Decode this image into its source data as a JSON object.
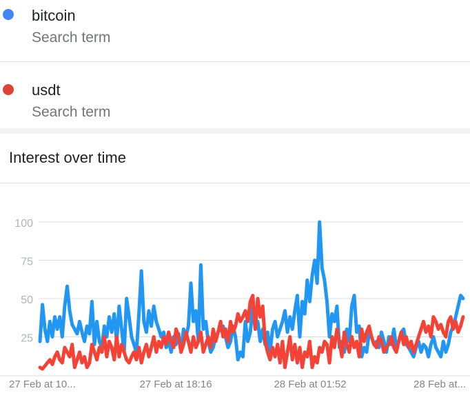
{
  "terms": [
    {
      "name": "bitcoin",
      "subtitle": "Search term",
      "color": "#4285f4"
    },
    {
      "name": "usdt",
      "subtitle": "Search term",
      "color": "#db4437"
    }
  ],
  "section": {
    "title": "Interest over time"
  },
  "chart_data": {
    "type": "line",
    "title": "Interest over time",
    "ylim": [
      0,
      100
    ],
    "yticks": [
      25,
      50,
      75,
      100
    ],
    "xtick_labels": [
      "27 Feb at 10...",
      "27 Feb at 18:16",
      "28 Feb at 01:52",
      "28 Feb at..."
    ],
    "grid": true,
    "series": [
      {
        "name": "bitcoin",
        "color": "#2196f3",
        "values": [
          22,
          46,
          30,
          22,
          35,
          25,
          38,
          30,
          38,
          25,
          45,
          58,
          42,
          33,
          30,
          27,
          35,
          28,
          22,
          32,
          27,
          48,
          20,
          35,
          22,
          18,
          32,
          25,
          38,
          28,
          40,
          22,
          45,
          30,
          15,
          50,
          38,
          25,
          20,
          15,
          40,
          68,
          35,
          28,
          42,
          32,
          45,
          35,
          30,
          25,
          28,
          18,
          22,
          15,
          25,
          20,
          27,
          15,
          30,
          25,
          32,
          60,
          35,
          42,
          22,
          72,
          30,
          35,
          22,
          15,
          18,
          25,
          28,
          30,
          32,
          25,
          18,
          22,
          32,
          25,
          10,
          15,
          12,
          35,
          22,
          28,
          45,
          30,
          35,
          22,
          30,
          20,
          28,
          15,
          30,
          35,
          25,
          30,
          35,
          42,
          28,
          38,
          30,
          42,
          52,
          25,
          48,
          40,
          62,
          48,
          65,
          75,
          60,
          100,
          70,
          62,
          48,
          25,
          40,
          35,
          45,
          18,
          22,
          15,
          30,
          22,
          45,
          52,
          28,
          32,
          12,
          18,
          15,
          28,
          25,
          20,
          22,
          18,
          28,
          22,
          15,
          25,
          20,
          30,
          18,
          22,
          28,
          30,
          20,
          18,
          15,
          12,
          18,
          22,
          15,
          20,
          18,
          12,
          20,
          25,
          18,
          15,
          12,
          22,
          15,
          20,
          28,
          32,
          38,
          45,
          52,
          50
        ]
      },
      {
        "name": "usdt",
        "color": "#f44336",
        "values": [
          5,
          4,
          6,
          8,
          10,
          7,
          12,
          15,
          10,
          8,
          18,
          15,
          12,
          20,
          5,
          10,
          15,
          8,
          12,
          5,
          8,
          20,
          15,
          10,
          18,
          15,
          25,
          12,
          22,
          18,
          10,
          25,
          12,
          20,
          15,
          10,
          8,
          12,
          15,
          10,
          18,
          8,
          15,
          20,
          12,
          18,
          25,
          15,
          22,
          18,
          25,
          20,
          28,
          22,
          18,
          30,
          25,
          15,
          20,
          28,
          22,
          15,
          25,
          18,
          22,
          28,
          15,
          20,
          25,
          18,
          30,
          22,
          28,
          35,
          25,
          30,
          22,
          35,
          28,
          32,
          40,
          35,
          38,
          42,
          35,
          48,
          52,
          30,
          50,
          38,
          45,
          22,
          15,
          10,
          18,
          12,
          20,
          8,
          22,
          5,
          15,
          25,
          10,
          20,
          8,
          18,
          5,
          15,
          12,
          22,
          5,
          12,
          8,
          18,
          15,
          22,
          20,
          8,
          25,
          18,
          30,
          22,
          12,
          28,
          20,
          15,
          25,
          18,
          22,
          12,
          30,
          22,
          28,
          32,
          25,
          20,
          18,
          25,
          22,
          15,
          18,
          20,
          25,
          18,
          15,
          22,
          28,
          20,
          25,
          18,
          22,
          15,
          20,
          25,
          30,
          35,
          28,
          32,
          25,
          38,
          35,
          30,
          33,
          28,
          25,
          35,
          38,
          30,
          35,
          28,
          32,
          38
        ]
      }
    ]
  }
}
